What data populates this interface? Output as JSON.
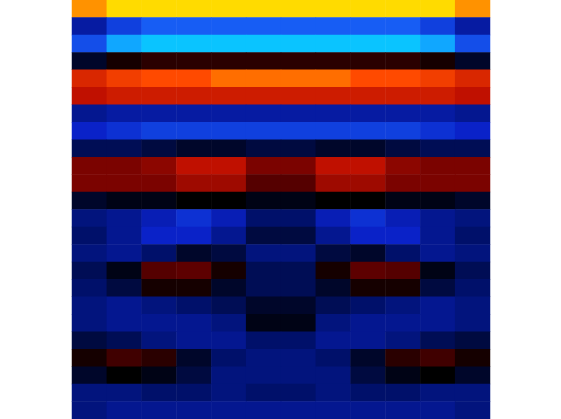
{
  "chart_data": {
    "type": "heatmap",
    "tick_labels": false,
    "color_range": [
      -1,
      1
    ],
    "cells": [
      [
        0.85,
        0.95,
        0.95,
        0.95,
        0.95,
        0.95,
        0.95,
        0.95,
        0.95,
        0.95,
        0.95,
        0.85
      ],
      [
        -0.4,
        -0.6,
        -0.7,
        -0.7,
        -0.7,
        -0.7,
        -0.7,
        -0.7,
        -0.7,
        -0.7,
        -0.6,
        -0.4
      ],
      [
        -0.65,
        -0.85,
        -0.9,
        -0.9,
        -0.9,
        -0.9,
        -0.9,
        -0.9,
        -0.9,
        -0.9,
        -0.85,
        -0.65
      ],
      [
        -0.1,
        0.05,
        0.1,
        0.1,
        0.1,
        0.1,
        0.1,
        0.1,
        0.1,
        0.1,
        0.05,
        -0.1
      ],
      [
        0.6,
        0.7,
        0.75,
        0.75,
        0.8,
        0.8,
        0.8,
        0.8,
        0.75,
        0.75,
        0.7,
        0.6
      ],
      [
        0.5,
        0.55,
        0.55,
        0.55,
        0.55,
        0.55,
        0.55,
        0.55,
        0.55,
        0.55,
        0.55,
        0.5
      ],
      [
        -0.35,
        -0.4,
        -0.4,
        -0.4,
        -0.4,
        -0.4,
        -0.4,
        -0.4,
        -0.4,
        -0.4,
        -0.4,
        -0.35
      ],
      [
        -0.5,
        -0.55,
        -0.6,
        -0.6,
        -0.6,
        -0.6,
        -0.6,
        -0.6,
        -0.6,
        -0.6,
        -0.55,
        -0.5
      ],
      [
        -0.2,
        -0.2,
        -0.15,
        -0.1,
        -0.1,
        -0.15,
        -0.15,
        -0.1,
        -0.1,
        -0.15,
        -0.2,
        -0.2
      ],
      [
        0.3,
        0.3,
        0.35,
        0.5,
        0.5,
        0.3,
        0.3,
        0.5,
        0.5,
        0.35,
        0.3,
        0.3
      ],
      [
        0.3,
        0.3,
        0.3,
        0.4,
        0.4,
        0.2,
        0.2,
        0.4,
        0.4,
        0.3,
        0.3,
        0.3
      ],
      [
        -0.1,
        -0.05,
        -0.05,
        0.0,
        0.0,
        -0.05,
        -0.05,
        0.0,
        0.0,
        -0.05,
        -0.05,
        -0.1
      ],
      [
        -0.3,
        -0.35,
        -0.45,
        -0.55,
        -0.45,
        -0.25,
        -0.25,
        -0.45,
        -0.55,
        -0.45,
        -0.35,
        -0.3
      ],
      [
        -0.25,
        -0.35,
        -0.5,
        -0.5,
        -0.35,
        -0.15,
        -0.15,
        -0.35,
        -0.5,
        -0.5,
        -0.35,
        -0.25
      ],
      [
        -0.3,
        -0.35,
        -0.25,
        -0.1,
        -0.15,
        -0.3,
        -0.3,
        -0.15,
        -0.1,
        -0.25,
        -0.35,
        -0.3
      ],
      [
        -0.2,
        -0.05,
        0.2,
        0.22,
        0.05,
        -0.2,
        -0.2,
        0.05,
        0.22,
        0.2,
        -0.05,
        -0.2
      ],
      [
        -0.25,
        -0.15,
        0.05,
        0.05,
        -0.1,
        -0.2,
        -0.2,
        -0.1,
        0.05,
        0.05,
        -0.15,
        -0.25
      ],
      [
        -0.3,
        -0.35,
        -0.3,
        -0.25,
        -0.2,
        -0.1,
        -0.1,
        -0.2,
        -0.25,
        -0.3,
        -0.35,
        -0.3
      ],
      [
        -0.3,
        -0.35,
        -0.35,
        -0.35,
        -0.3,
        -0.05,
        -0.05,
        -0.3,
        -0.35,
        -0.35,
        -0.35,
        -0.3
      ],
      [
        -0.15,
        -0.2,
        -0.3,
        -0.35,
        -0.35,
        -0.25,
        -0.25,
        -0.35,
        -0.35,
        -0.3,
        -0.2,
        -0.15
      ],
      [
        0.05,
        0.15,
        0.1,
        -0.1,
        -0.25,
        -0.3,
        -0.3,
        -0.25,
        -0.1,
        0.1,
        0.15,
        0.05
      ],
      [
        -0.1,
        0.0,
        -0.05,
        -0.15,
        -0.3,
        -0.3,
        -0.3,
        -0.3,
        -0.15,
        -0.05,
        0.0,
        -0.1
      ],
      [
        -0.3,
        -0.3,
        -0.25,
        -0.25,
        -0.3,
        -0.25,
        -0.25,
        -0.3,
        -0.25,
        -0.25,
        -0.3,
        -0.3
      ],
      [
        -0.3,
        -0.35,
        -0.35,
        -0.35,
        -0.35,
        -0.35,
        -0.35,
        -0.35,
        -0.35,
        -0.35,
        -0.35,
        -0.3
      ]
    ]
  }
}
